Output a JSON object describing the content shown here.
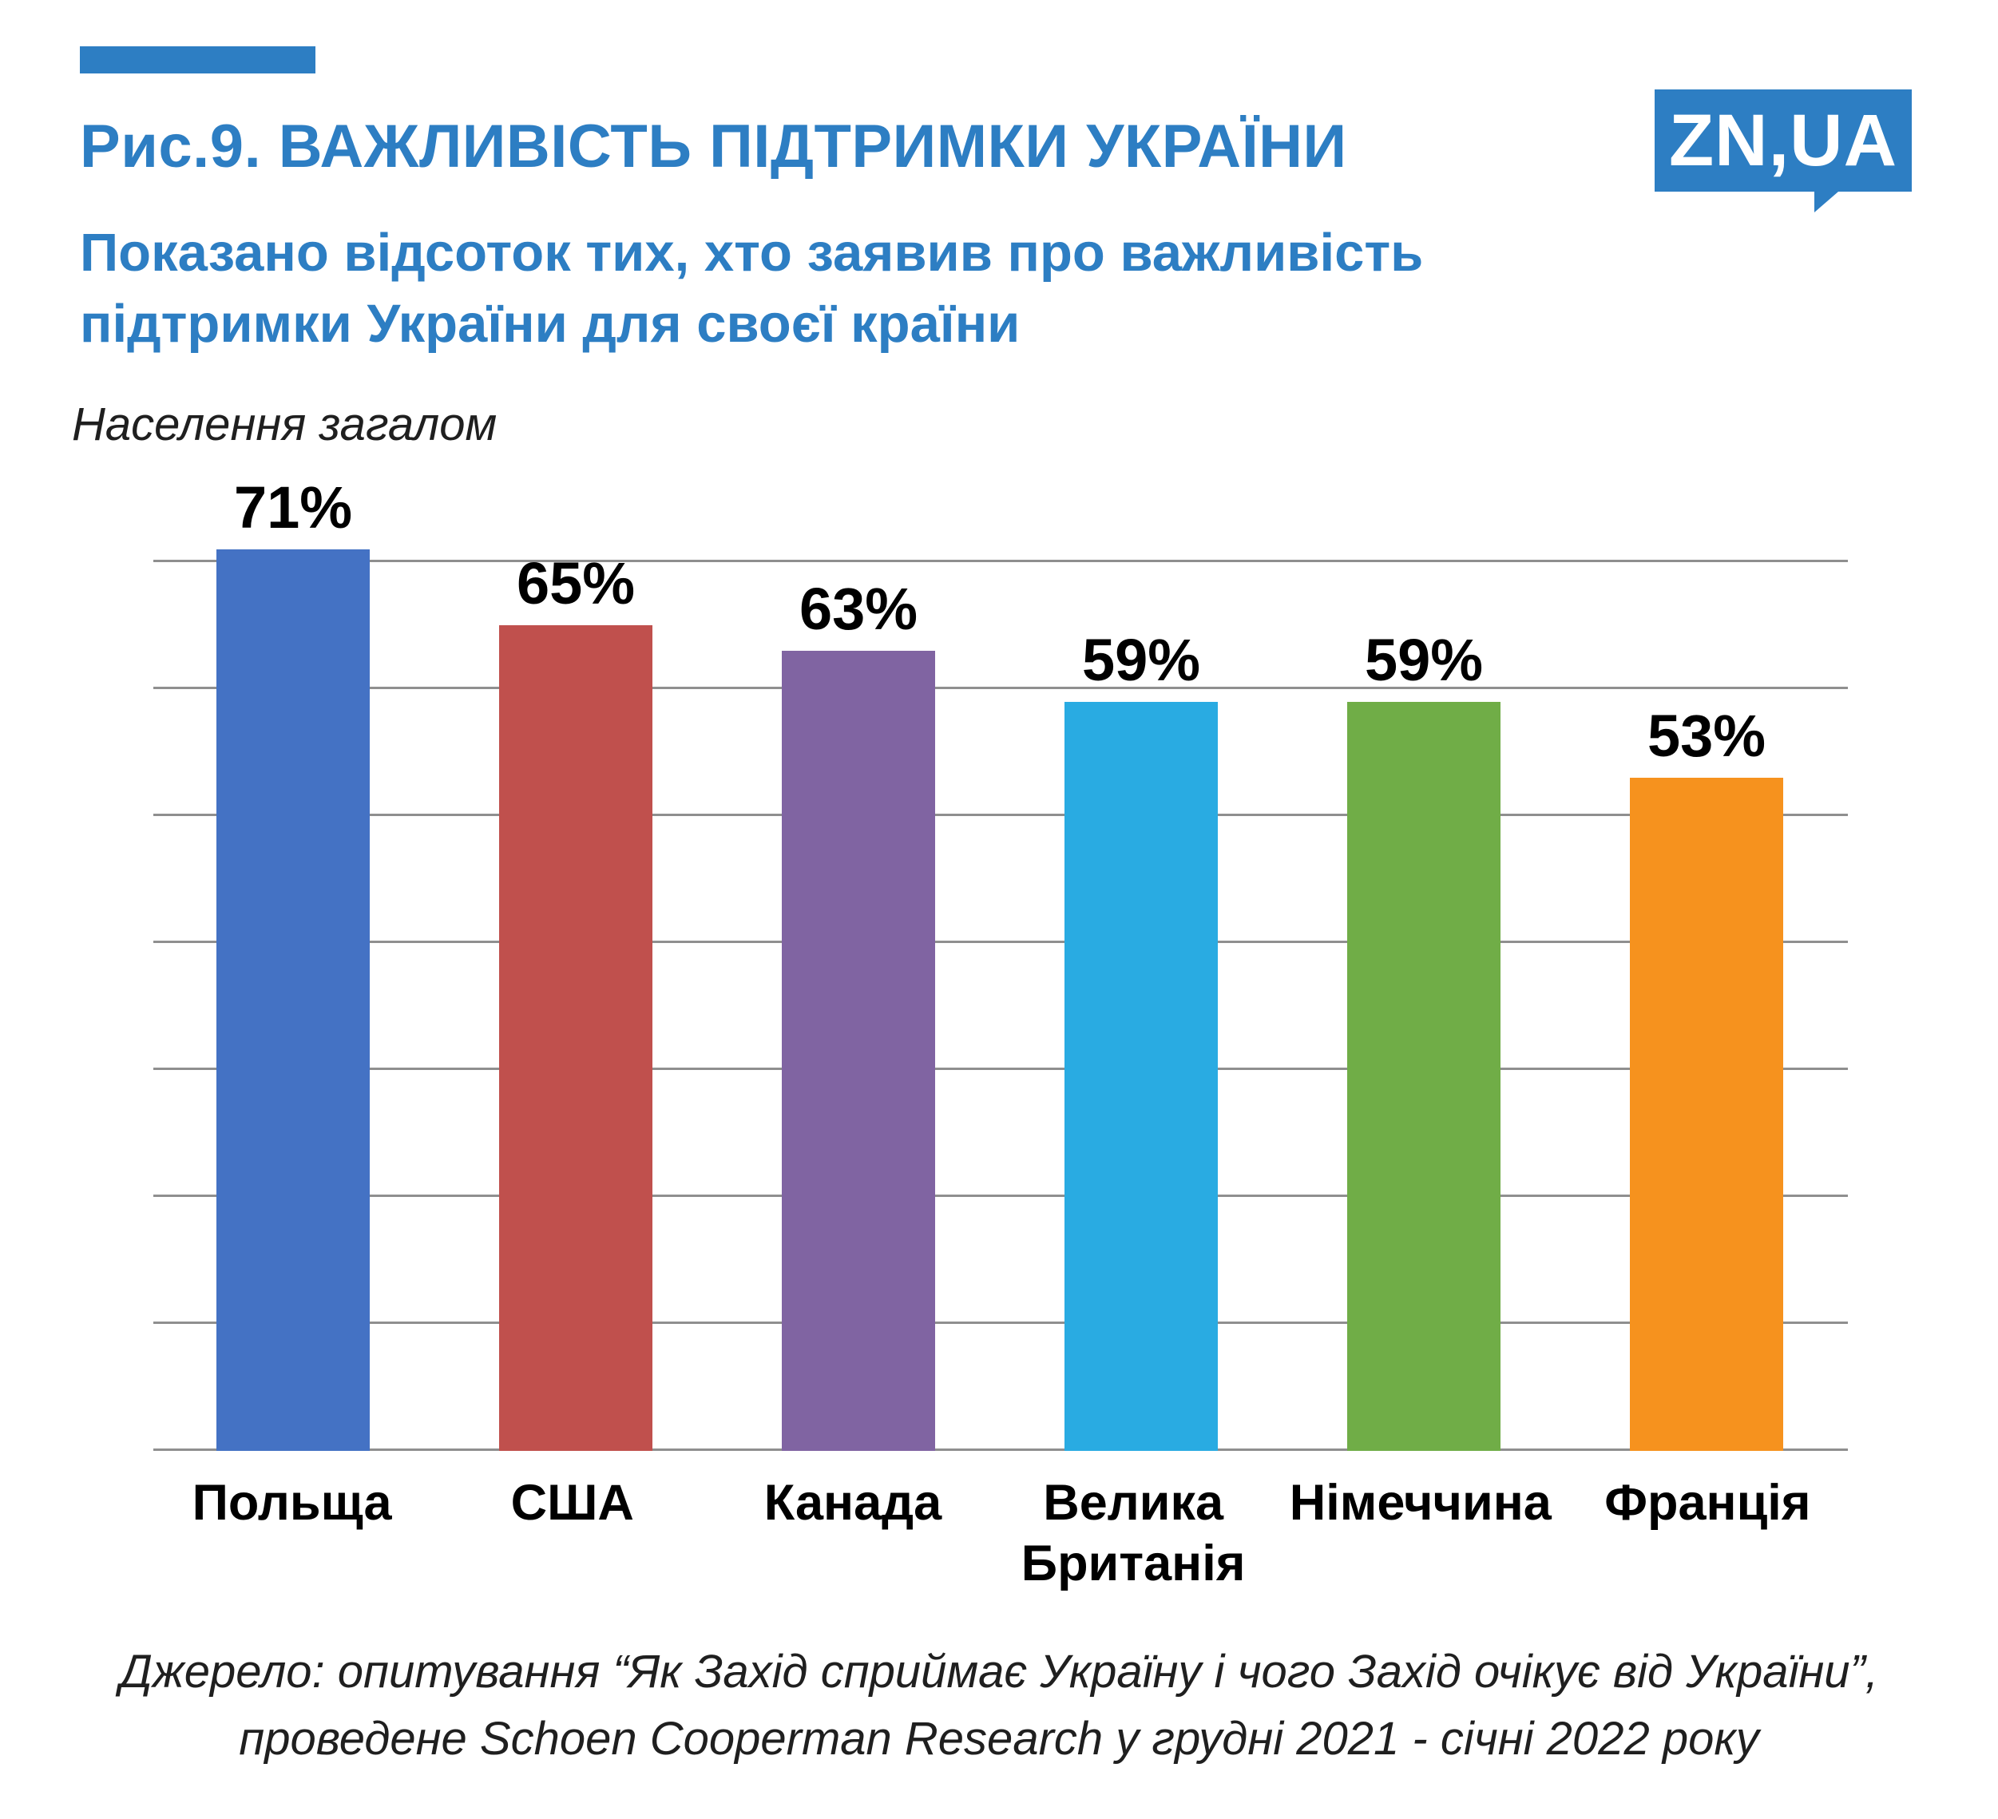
{
  "page": {
    "figure_title": "Рис.9. ВАЖЛИВІСТЬ ПІДТРИМКИ УКРАЇНИ",
    "subtitle_line1": "Показано відсоток тих, хто заявив про важливість",
    "subtitle_line2": "підтримки України для своєї країни",
    "note": "Населення загалом",
    "source_line1": "Джерело: опитування “Як Захід сприймає Україну і чого Захід очікує від України”,",
    "source_line2": "проведене Schoen Cooperman Research у грудні 2021 - січні 2022 року",
    "logo_text": "ZN,UA",
    "accent_color": "#2d7ec3"
  },
  "chart_data": {
    "type": "bar",
    "title": "Важливість підтримки України",
    "subtitle": "Населення загалом",
    "categories": [
      "Польща",
      "США",
      "Канада",
      "Велика Британія",
      "Німеччина",
      "Франція"
    ],
    "values": [
      71,
      65,
      63,
      59,
      59,
      53
    ],
    "value_labels": [
      "71%",
      "65%",
      "63%",
      "59%",
      "59%",
      "53%"
    ],
    "colors": [
      "#4472c4",
      "#c0504d",
      "#8064a2",
      "#29abe2",
      "#70ad47",
      "#f6921e"
    ],
    "xlabel": "",
    "ylabel": "",
    "ylim": [
      0,
      70
    ],
    "grid_step": 10,
    "grid_max": 70,
    "grid": "horizontal",
    "legend": "none"
  }
}
